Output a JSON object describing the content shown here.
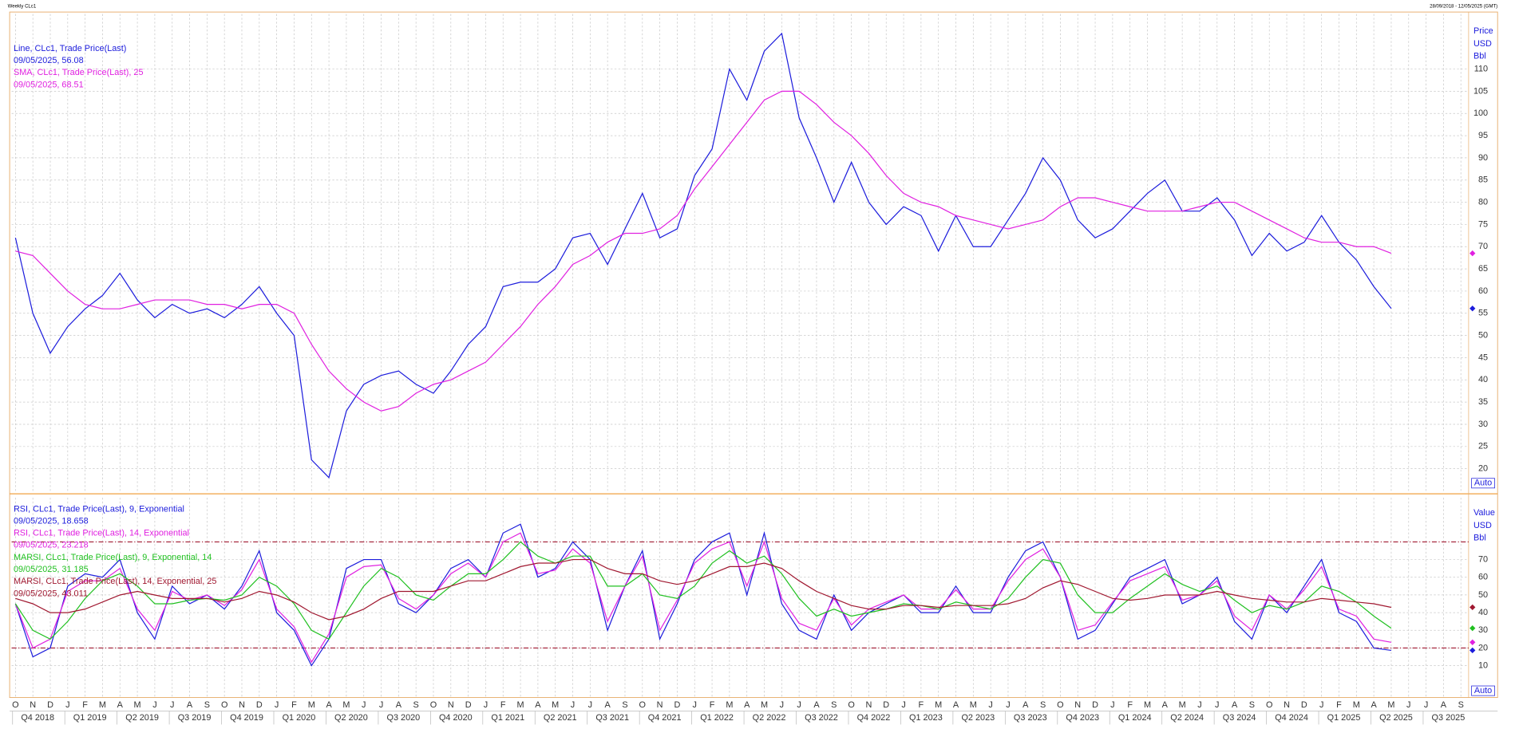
{
  "header": {
    "title": "Weekly CLc1",
    "range": "28/09/2018 - 12/05/2025 (GMT)"
  },
  "chart_data": [
    {
      "type": "line",
      "x": [
        "2018-10",
        "2018-11",
        "2018-12",
        "2019-01",
        "2019-02",
        "2019-03",
        "2019-04",
        "2019-05",
        "2019-06",
        "2019-07",
        "2019-08",
        "2019-09",
        "2019-10",
        "2019-11",
        "2019-12",
        "2020-01",
        "2020-02",
        "2020-03",
        "2020-04",
        "2020-05",
        "2020-06",
        "2020-07",
        "2020-08",
        "2020-09",
        "2020-10",
        "2020-11",
        "2020-12",
        "2021-01",
        "2021-02",
        "2021-03",
        "2021-04",
        "2021-05",
        "2021-06",
        "2021-07",
        "2021-08",
        "2021-09",
        "2021-10",
        "2021-11",
        "2021-12",
        "2022-01",
        "2022-02",
        "2022-03",
        "2022-04",
        "2022-05",
        "2022-06",
        "2022-07",
        "2022-08",
        "2022-09",
        "2022-10",
        "2022-11",
        "2022-12",
        "2023-01",
        "2023-02",
        "2023-03",
        "2023-04",
        "2023-05",
        "2023-06",
        "2023-07",
        "2023-08",
        "2023-09",
        "2023-10",
        "2023-11",
        "2023-12",
        "2024-01",
        "2024-02",
        "2024-03",
        "2024-04",
        "2024-05",
        "2024-06",
        "2024-07",
        "2024-08",
        "2024-09",
        "2024-10",
        "2024-11",
        "2024-12",
        "2025-01",
        "2025-02",
        "2025-03",
        "2025-04",
        "2025-05"
      ],
      "xlim": [
        "2018-10",
        "2025-09"
      ],
      "series": [
        {
          "name": "Line, CLc1, Trade Price(Last)",
          "last_label": "09/05/2025, 56.08",
          "color": "#1c1cdc",
          "values": [
            72,
            55,
            46,
            52,
            56,
            59,
            64,
            58,
            54,
            57,
            55,
            56,
            54,
            57,
            61,
            55,
            50,
            22,
            18,
            33,
            39,
            41,
            42,
            39,
            37,
            42,
            48,
            52,
            61,
            62,
            62,
            65,
            72,
            73,
            66,
            74,
            82,
            72,
            74,
            86,
            92,
            110,
            103,
            114,
            118,
            99,
            90,
            80,
            89,
            80,
            75,
            79,
            77,
            69,
            77,
            70,
            70,
            76,
            82,
            90,
            85,
            76,
            72,
            74,
            78,
            82,
            85,
            78,
            78,
            81,
            76,
            68,
            73,
            69,
            71,
            77,
            71,
            67,
            61,
            56.08
          ]
        },
        {
          "name": "SMA, CLc1, Trade Price(Last),  25",
          "last_label": "09/05/2025, 68.51",
          "color": "#e020e0",
          "values": [
            69,
            68,
            64,
            60,
            57,
            56,
            56,
            57,
            58,
            58,
            58,
            57,
            57,
            56,
            57,
            57,
            55,
            48,
            42,
            38,
            35,
            33,
            34,
            37,
            39,
            40,
            42,
            44,
            48,
            52,
            57,
            61,
            66,
            68,
            71,
            73,
            73,
            74,
            77,
            83,
            88,
            93,
            98,
            103,
            105,
            105,
            102,
            98,
            95,
            91,
            86,
            82,
            80,
            79,
            77,
            76,
            75,
            74,
            75,
            76,
            79,
            81,
            81,
            80,
            79,
            78,
            78,
            78,
            79,
            80,
            80,
            78,
            76,
            74,
            72,
            71,
            71,
            70,
            70,
            68.51
          ]
        }
      ],
      "ylim": [
        15,
        122.4
      ],
      "yticks": [
        20,
        25,
        30,
        35,
        40,
        45,
        50,
        55,
        60,
        65,
        70,
        75,
        80,
        85,
        90,
        95,
        100,
        105,
        110
      ],
      "y_axis_labels": [
        "Price",
        "USD",
        "Bbl"
      ],
      "scale_button": "Auto",
      "grid": true
    },
    {
      "type": "line",
      "x": [
        "2018-10",
        "2018-11",
        "2018-12",
        "2019-01",
        "2019-02",
        "2019-03",
        "2019-04",
        "2019-05",
        "2019-06",
        "2019-07",
        "2019-08",
        "2019-09",
        "2019-10",
        "2019-11",
        "2019-12",
        "2020-01",
        "2020-02",
        "2020-03",
        "2020-04",
        "2020-05",
        "2020-06",
        "2020-07",
        "2020-08",
        "2020-09",
        "2020-10",
        "2020-11",
        "2020-12",
        "2021-01",
        "2021-02",
        "2021-03",
        "2021-04",
        "2021-05",
        "2021-06",
        "2021-07",
        "2021-08",
        "2021-09",
        "2021-10",
        "2021-11",
        "2021-12",
        "2022-01",
        "2022-02",
        "2022-03",
        "2022-04",
        "2022-05",
        "2022-06",
        "2022-07",
        "2022-08",
        "2022-09",
        "2022-10",
        "2022-11",
        "2022-12",
        "2023-01",
        "2023-02",
        "2023-03",
        "2023-04",
        "2023-05",
        "2023-06",
        "2023-07",
        "2023-08",
        "2023-09",
        "2023-10",
        "2023-11",
        "2023-12",
        "2024-01",
        "2024-02",
        "2024-03",
        "2024-04",
        "2024-05",
        "2024-06",
        "2024-07",
        "2024-08",
        "2024-09",
        "2024-10",
        "2024-11",
        "2024-12",
        "2025-01",
        "2025-02",
        "2025-03",
        "2025-04",
        "2025-05"
      ],
      "xlim": [
        "2018-10",
        "2025-09"
      ],
      "series": [
        {
          "name": "RSI, CLc1, Trade Price(Last),  9, Exponential",
          "last_label": "09/05/2025, 18.658",
          "color": "#1c1cdc",
          "values": [
            45,
            15,
            20,
            55,
            62,
            60,
            70,
            40,
            25,
            55,
            45,
            50,
            42,
            55,
            75,
            40,
            30,
            10,
            25,
            65,
            70,
            70,
            45,
            40,
            50,
            65,
            70,
            60,
            85,
            90,
            60,
            65,
            80,
            70,
            30,
            55,
            75,
            25,
            45,
            70,
            80,
            85,
            50,
            85,
            45,
            30,
            25,
            50,
            30,
            40,
            45,
            50,
            40,
            40,
            55,
            40,
            40,
            60,
            75,
            80,
            60,
            25,
            30,
            45,
            60,
            65,
            70,
            45,
            50,
            60,
            35,
            25,
            50,
            40,
            55,
            70,
            40,
            35,
            20,
            18.658
          ]
        },
        {
          "name": "RSI, CLc1, Trade Price(Last),  14, Exponential",
          "last_label": "09/05/2025, 23.218",
          "color": "#e020e0",
          "values": [
            45,
            20,
            25,
            52,
            58,
            58,
            65,
            42,
            30,
            52,
            47,
            50,
            44,
            53,
            70,
            42,
            32,
            12,
            28,
            60,
            66,
            67,
            48,
            42,
            50,
            62,
            68,
            60,
            80,
            85,
            62,
            64,
            76,
            68,
            35,
            55,
            72,
            30,
            47,
            68,
            76,
            80,
            55,
            80,
            48,
            34,
            30,
            48,
            33,
            42,
            46,
            50,
            42,
            42,
            53,
            42,
            42,
            58,
            70,
            76,
            60,
            30,
            33,
            46,
            58,
            62,
            66,
            47,
            50,
            58,
            38,
            30,
            50,
            42,
            53,
            66,
            42,
            38,
            25,
            23.218
          ]
        },
        {
          "name": "MARSI, CLc1, Trade Price(Last),  9, Exponential, 14",
          "last_label": "09/05/2025, 31.185",
          "color": "#20c020",
          "values": [
            45,
            30,
            25,
            35,
            48,
            58,
            62,
            55,
            45,
            45,
            47,
            48,
            47,
            50,
            60,
            55,
            45,
            30,
            25,
            40,
            55,
            65,
            60,
            50,
            47,
            55,
            62,
            62,
            70,
            80,
            72,
            68,
            72,
            72,
            55,
            55,
            62,
            50,
            48,
            55,
            68,
            75,
            68,
            72,
            62,
            48,
            38,
            42,
            38,
            40,
            42,
            45,
            44,
            42,
            46,
            44,
            42,
            48,
            60,
            70,
            68,
            50,
            40,
            40,
            48,
            55,
            62,
            56,
            52,
            55,
            47,
            40,
            44,
            42,
            46,
            55,
            52,
            46,
            38,
            31.185
          ]
        },
        {
          "name": "MARSI, CLc1, Trade Price(Last),  14, Exponential, 25",
          "last_label": "09/05/2025, 43.011",
          "color": "#a01830",
          "values": [
            48,
            45,
            40,
            40,
            42,
            46,
            50,
            52,
            50,
            48,
            48,
            48,
            46,
            48,
            52,
            50,
            46,
            40,
            36,
            38,
            42,
            48,
            52,
            52,
            52,
            55,
            58,
            58,
            62,
            66,
            68,
            68,
            70,
            70,
            65,
            62,
            62,
            58,
            56,
            58,
            62,
            66,
            66,
            68,
            65,
            58,
            52,
            48,
            44,
            42,
            42,
            44,
            44,
            43,
            44,
            44,
            44,
            45,
            48,
            54,
            58,
            56,
            52,
            48,
            47,
            48,
            50,
            50,
            50,
            52,
            50,
            48,
            47,
            46,
            46,
            48,
            47,
            46,
            45,
            43.011
          ]
        }
      ],
      "ylim": [
        -8,
        105
      ],
      "yticks": [
        10,
        20,
        30,
        40,
        50,
        60,
        70
      ],
      "levels": [
        20,
        80
      ],
      "level_color": "#a01830",
      "y_axis_labels": [
        "Value",
        "USD",
        "Bbl"
      ],
      "scale_button": "Auto",
      "grid": true,
      "xticks": [
        {
          "value": "2018-10",
          "label": "O"
        },
        {
          "value": "2018-11",
          "label": "N"
        },
        {
          "value": "2018-12",
          "label": "D"
        },
        {
          "value": "2019-01",
          "label": "J"
        },
        {
          "value": "2019-02",
          "label": "F"
        },
        {
          "value": "2019-03",
          "label": "M"
        },
        {
          "value": "2019-04",
          "label": "A"
        },
        {
          "value": "2019-05",
          "label": "M"
        },
        {
          "value": "2019-06",
          "label": "J"
        },
        {
          "value": "2019-07",
          "label": "J"
        },
        {
          "value": "2019-08",
          "label": "A"
        },
        {
          "value": "2019-09",
          "label": "S"
        },
        {
          "value": "2019-10",
          "label": "O"
        },
        {
          "value": "2019-11",
          "label": "N"
        },
        {
          "value": "2019-12",
          "label": "D"
        },
        {
          "value": "2020-01",
          "label": "J"
        },
        {
          "value": "2020-02",
          "label": "F"
        },
        {
          "value": "2020-03",
          "label": "M"
        },
        {
          "value": "2020-04",
          "label": "A"
        },
        {
          "value": "2020-05",
          "label": "M"
        },
        {
          "value": "2020-06",
          "label": "J"
        },
        {
          "value": "2020-07",
          "label": "J"
        },
        {
          "value": "2020-08",
          "label": "A"
        },
        {
          "value": "2020-09",
          "label": "S"
        },
        {
          "value": "2020-10",
          "label": "O"
        },
        {
          "value": "2020-11",
          "label": "N"
        },
        {
          "value": "2020-12",
          "label": "D"
        },
        {
          "value": "2021-01",
          "label": "J"
        },
        {
          "value": "2021-02",
          "label": "F"
        },
        {
          "value": "2021-03",
          "label": "M"
        },
        {
          "value": "2021-04",
          "label": "A"
        },
        {
          "value": "2021-05",
          "label": "M"
        },
        {
          "value": "2021-06",
          "label": "J"
        },
        {
          "value": "2021-07",
          "label": "J"
        },
        {
          "value": "2021-08",
          "label": "A"
        },
        {
          "value": "2021-09",
          "label": "S"
        },
        {
          "value": "2021-10",
          "label": "O"
        },
        {
          "value": "2021-11",
          "label": "N"
        },
        {
          "value": "2021-12",
          "label": "D"
        },
        {
          "value": "2022-01",
          "label": "J"
        },
        {
          "value": "2022-02",
          "label": "F"
        },
        {
          "value": "2022-03",
          "label": "M"
        },
        {
          "value": "2022-04",
          "label": "A"
        },
        {
          "value": "2022-05",
          "label": "M"
        },
        {
          "value": "2022-06",
          "label": "J"
        },
        {
          "value": "2022-07",
          "label": "J"
        },
        {
          "value": "2022-08",
          "label": "A"
        },
        {
          "value": "2022-09",
          "label": "S"
        },
        {
          "value": "2022-10",
          "label": "O"
        },
        {
          "value": "2022-11",
          "label": "N"
        },
        {
          "value": "2022-12",
          "label": "D"
        },
        {
          "value": "2023-01",
          "label": "J"
        },
        {
          "value": "2023-02",
          "label": "F"
        },
        {
          "value": "2023-03",
          "label": "M"
        },
        {
          "value": "2023-04",
          "label": "A"
        },
        {
          "value": "2023-05",
          "label": "M"
        },
        {
          "value": "2023-06",
          "label": "J"
        },
        {
          "value": "2023-07",
          "label": "J"
        },
        {
          "value": "2023-08",
          "label": "A"
        },
        {
          "value": "2023-09",
          "label": "S"
        },
        {
          "value": "2023-10",
          "label": "O"
        },
        {
          "value": "2023-11",
          "label": "N"
        },
        {
          "value": "2023-12",
          "label": "D"
        },
        {
          "value": "2024-01",
          "label": "J"
        },
        {
          "value": "2024-02",
          "label": "F"
        },
        {
          "value": "2024-03",
          "label": "M"
        },
        {
          "value": "2024-04",
          "label": "A"
        },
        {
          "value": "2024-05",
          "label": "M"
        },
        {
          "value": "2024-06",
          "label": "J"
        },
        {
          "value": "2024-07",
          "label": "J"
        },
        {
          "value": "2024-08",
          "label": "A"
        },
        {
          "value": "2024-09",
          "label": "S"
        },
        {
          "value": "2024-10",
          "label": "O"
        },
        {
          "value": "2024-11",
          "label": "N"
        },
        {
          "value": "2024-12",
          "label": "D"
        },
        {
          "value": "2025-01",
          "label": "J"
        },
        {
          "value": "2025-02",
          "label": "F"
        },
        {
          "value": "2025-03",
          "label": "M"
        },
        {
          "value": "2025-04",
          "label": "A"
        },
        {
          "value": "2025-05",
          "label": "M"
        },
        {
          "value": "2025-06",
          "label": "J"
        },
        {
          "value": "2025-07",
          "label": "J"
        },
        {
          "value": "2025-08",
          "label": "A"
        },
        {
          "value": "2025-09",
          "label": "S"
        }
      ],
      "quarters": [
        "Q4 2018",
        "Q1 2019",
        "Q2 2019",
        "Q3 2019",
        "Q4 2019",
        "Q1 2020",
        "Q2 2020",
        "Q3 2020",
        "Q4 2020",
        "Q1 2021",
        "Q2 2021",
        "Q3 2021",
        "Q4 2021",
        "Q1 2022",
        "Q2 2022",
        "Q3 2022",
        "Q4 2022",
        "Q1 2023",
        "Q2 2023",
        "Q3 2023",
        "Q4 2023",
        "Q1 2024",
        "Q2 2024",
        "Q3 2024",
        "Q4 2024",
        "Q1 2025",
        "Q2 2025",
        "Q3 2025"
      ]
    }
  ]
}
